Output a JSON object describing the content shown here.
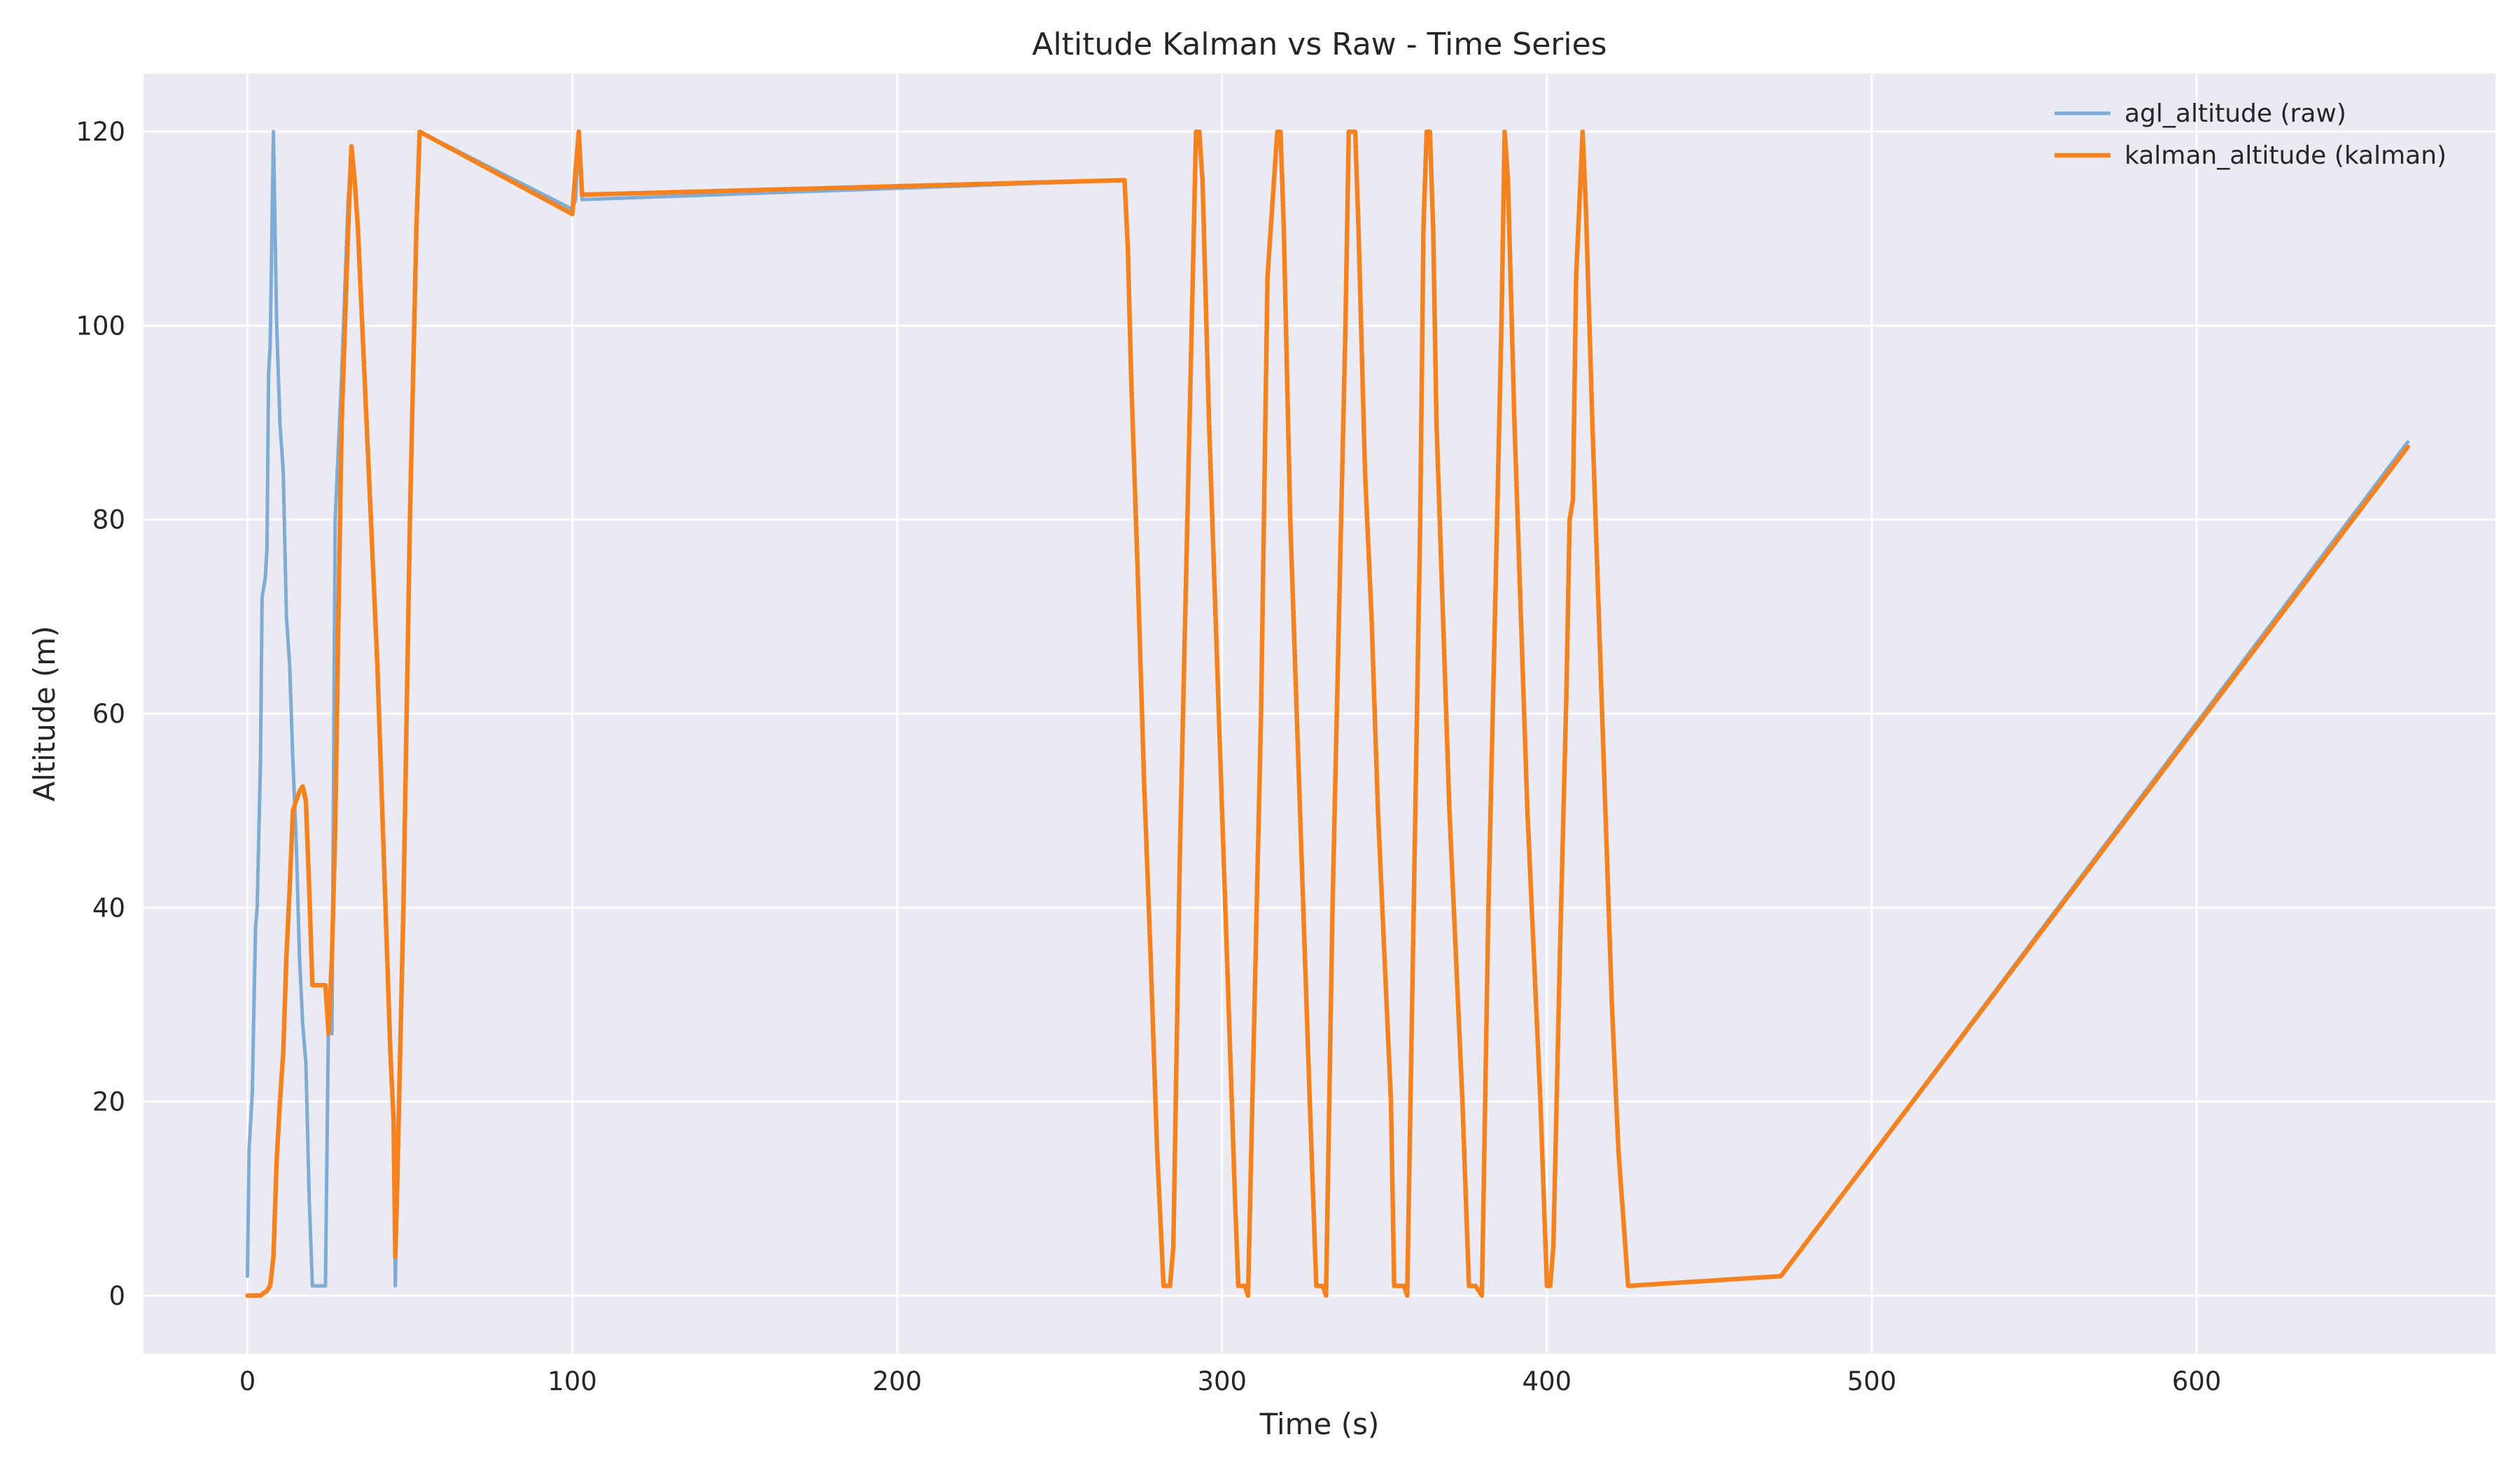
{
  "chart_data": {
    "type": "line",
    "title": "Altitude Kalman vs Raw - Time Series",
    "xlabel": "Time (s)",
    "ylabel": "Altitude (m)",
    "xlim": [
      -32,
      692
    ],
    "ylim": [
      -6,
      126
    ],
    "xticks": [
      0,
      100,
      200,
      300,
      400,
      500,
      600
    ],
    "yticks": [
      0,
      20,
      40,
      60,
      80,
      100,
      120
    ],
    "grid": true,
    "legend_position": "top-right",
    "series": [
      {
        "name": "agl_altitude (raw)",
        "color": "#7fabd4",
        "points": [
          [
            0,
            2
          ],
          [
            0.5,
            15
          ],
          [
            1.5,
            21
          ],
          [
            2,
            30
          ],
          [
            2.5,
            38
          ],
          [
            3,
            40
          ],
          [
            4,
            55
          ],
          [
            4.5,
            72
          ],
          [
            5.5,
            74
          ],
          [
            6,
            77
          ],
          [
            6.5,
            95
          ],
          [
            7,
            98
          ],
          [
            8,
            120
          ],
          [
            9,
            100
          ],
          [
            10,
            90
          ],
          [
            11,
            85
          ],
          [
            12,
            70
          ],
          [
            13,
            65
          ],
          [
            14,
            55
          ],
          [
            15,
            47
          ],
          [
            16,
            35
          ],
          [
            17,
            28
          ],
          [
            18,
            24
          ],
          [
            19,
            10
          ],
          [
            20,
            1
          ],
          [
            22,
            1
          ],
          [
            24,
            1
          ],
          [
            25,
            30
          ],
          [
            26,
            27
          ],
          [
            27,
            80
          ],
          [
            29,
            95
          ],
          [
            31,
            113
          ],
          [
            32,
            118
          ],
          [
            33,
            115
          ],
          [
            34,
            110
          ],
          [
            36,
            95
          ],
          [
            38,
            80
          ],
          [
            40,
            65
          ],
          [
            42,
            45
          ],
          [
            44,
            25
          ],
          [
            45,
            18
          ],
          [
            45.5,
            1
          ],
          [
            46,
            10
          ],
          [
            48,
            40
          ],
          [
            50,
            80
          ],
          [
            51,
            95
          ],
          [
            52,
            110
          ],
          [
            53,
            120
          ],
          [
            100,
            112
          ],
          [
            101,
            113
          ],
          [
            102,
            120
          ],
          [
            103,
            113
          ],
          [
            270,
            115
          ],
          [
            271,
            108
          ],
          [
            272,
            95
          ],
          [
            274,
            75
          ],
          [
            276,
            53
          ],
          [
            278,
            35
          ],
          [
            280,
            15
          ],
          [
            282,
            1
          ],
          [
            284,
            1
          ],
          [
            285,
            5
          ],
          [
            287,
            45
          ],
          [
            289,
            75
          ],
          [
            291,
            105
          ],
          [
            292,
            120
          ],
          [
            293,
            120
          ],
          [
            294,
            115
          ],
          [
            296,
            90
          ],
          [
            298,
            70
          ],
          [
            300,
            50
          ],
          [
            302,
            30
          ],
          [
            304,
            10
          ],
          [
            305,
            1
          ],
          [
            307,
            1
          ],
          [
            308,
            0
          ],
          [
            310,
            30
          ],
          [
            312,
            60
          ],
          [
            314,
            105
          ],
          [
            316,
            115
          ],
          [
            317,
            120
          ],
          [
            318,
            120
          ],
          [
            319,
            110
          ],
          [
            321,
            80
          ],
          [
            323,
            60
          ],
          [
            325,
            40
          ],
          [
            327,
            20
          ],
          [
            329,
            1
          ],
          [
            331,
            1
          ],
          [
            332,
            0
          ],
          [
            334,
            40
          ],
          [
            336,
            70
          ],
          [
            338,
            100
          ],
          [
            339,
            120
          ],
          [
            341,
            120
          ],
          [
            342,
            110
          ],
          [
            344,
            85
          ],
          [
            346,
            70
          ],
          [
            348,
            50
          ],
          [
            350,
            35
          ],
          [
            352,
            20
          ],
          [
            353,
            1
          ],
          [
            356,
            1
          ],
          [
            357,
            0
          ],
          [
            359,
            40
          ],
          [
            361,
            80
          ],
          [
            362,
            110
          ],
          [
            363,
            120
          ],
          [
            364,
            120
          ],
          [
            365,
            110
          ],
          [
            366,
            90
          ],
          [
            368,
            70
          ],
          [
            370,
            50
          ],
          [
            372,
            35
          ],
          [
            374,
            20
          ],
          [
            376,
            1
          ],
          [
            378,
            1
          ],
          [
            380,
            0
          ],
          [
            382,
            40
          ],
          [
            384,
            70
          ],
          [
            386,
            100
          ],
          [
            387,
            120
          ],
          [
            388,
            115
          ],
          [
            390,
            90
          ],
          [
            392,
            70
          ],
          [
            394,
            50
          ],
          [
            396,
            35
          ],
          [
            398,
            20
          ],
          [
            400,
            1
          ],
          [
            401,
            1
          ],
          [
            402,
            5
          ],
          [
            404,
            35
          ],
          [
            406,
            62
          ],
          [
            407,
            80
          ],
          [
            408,
            82
          ],
          [
            409,
            105
          ],
          [
            411,
            120
          ],
          [
            412,
            112
          ],
          [
            414,
            90
          ],
          [
            416,
            70
          ],
          [
            418,
            50
          ],
          [
            420,
            30
          ],
          [
            422,
            15
          ],
          [
            425,
            1
          ],
          [
            472,
            2
          ],
          [
            665,
            88
          ]
        ]
      },
      {
        "name": "kalman_altitude (kalman)",
        "color": "#f5821f",
        "points": [
          [
            0,
            0
          ],
          [
            2,
            0
          ],
          [
            4,
            0
          ],
          [
            6,
            0.5
          ],
          [
            7,
            1
          ],
          [
            8,
            4
          ],
          [
            9,
            14
          ],
          [
            10,
            20
          ],
          [
            11,
            25
          ],
          [
            12,
            35
          ],
          [
            13,
            42
          ],
          [
            14,
            50
          ],
          [
            15,
            51
          ],
          [
            16,
            52
          ],
          [
            17,
            52.5
          ],
          [
            18,
            51
          ],
          [
            19,
            42
          ],
          [
            20,
            32
          ],
          [
            22,
            32
          ],
          [
            24,
            32
          ],
          [
            25,
            27
          ],
          [
            26,
            35
          ],
          [
            27,
            48
          ],
          [
            28,
            70
          ],
          [
            29,
            90
          ],
          [
            31,
            110
          ],
          [
            32,
            118.5
          ],
          [
            33,
            115
          ],
          [
            34,
            110
          ],
          [
            36,
            95
          ],
          [
            38,
            80
          ],
          [
            40,
            65
          ],
          [
            42,
            45
          ],
          [
            44,
            25
          ],
          [
            45,
            18
          ],
          [
            45.5,
            4
          ],
          [
            46,
            10
          ],
          [
            48,
            40
          ],
          [
            50,
            80
          ],
          [
            51,
            95
          ],
          [
            52,
            110
          ],
          [
            53,
            120
          ],
          [
            100,
            111.5
          ],
          [
            101,
            116
          ],
          [
            102,
            120
          ],
          [
            103,
            113.5
          ],
          [
            270,
            115
          ],
          [
            271,
            108
          ],
          [
            272,
            95
          ],
          [
            274,
            75
          ],
          [
            276,
            53
          ],
          [
            278,
            35
          ],
          [
            280,
            15
          ],
          [
            282,
            1
          ],
          [
            284,
            1
          ],
          [
            285,
            5
          ],
          [
            287,
            45
          ],
          [
            289,
            75
          ],
          [
            291,
            105
          ],
          [
            292,
            120
          ],
          [
            293,
            120
          ],
          [
            294,
            115
          ],
          [
            296,
            90
          ],
          [
            298,
            70
          ],
          [
            300,
            50
          ],
          [
            302,
            30
          ],
          [
            304,
            10
          ],
          [
            305,
            1
          ],
          [
            307,
            1
          ],
          [
            308,
            0
          ],
          [
            310,
            30
          ],
          [
            312,
            60
          ],
          [
            314,
            105
          ],
          [
            316,
            115
          ],
          [
            317,
            120
          ],
          [
            318,
            120
          ],
          [
            319,
            110
          ],
          [
            321,
            80
          ],
          [
            323,
            60
          ],
          [
            325,
            40
          ],
          [
            327,
            20
          ],
          [
            329,
            1
          ],
          [
            331,
            1
          ],
          [
            332,
            0
          ],
          [
            334,
            40
          ],
          [
            336,
            70
          ],
          [
            338,
            100
          ],
          [
            339,
            120
          ],
          [
            341,
            120
          ],
          [
            342,
            110
          ],
          [
            344,
            85
          ],
          [
            346,
            70
          ],
          [
            348,
            50
          ],
          [
            350,
            35
          ],
          [
            352,
            20
          ],
          [
            353,
            1
          ],
          [
            356,
            1
          ],
          [
            357,
            0
          ],
          [
            359,
            40
          ],
          [
            361,
            80
          ],
          [
            362,
            110
          ],
          [
            363,
            120
          ],
          [
            364,
            120
          ],
          [
            365,
            110
          ],
          [
            366,
            90
          ],
          [
            368,
            70
          ],
          [
            370,
            50
          ],
          [
            372,
            35
          ],
          [
            374,
            20
          ],
          [
            376,
            1
          ],
          [
            378,
            1
          ],
          [
            380,
            0
          ],
          [
            382,
            40
          ],
          [
            384,
            70
          ],
          [
            386,
            100
          ],
          [
            387,
            120
          ],
          [
            388,
            115
          ],
          [
            390,
            90
          ],
          [
            392,
            70
          ],
          [
            394,
            50
          ],
          [
            396,
            35
          ],
          [
            398,
            20
          ],
          [
            400,
            1
          ],
          [
            401,
            1
          ],
          [
            402,
            5
          ],
          [
            404,
            35
          ],
          [
            406,
            62
          ],
          [
            407,
            80
          ],
          [
            408,
            82
          ],
          [
            409,
            105
          ],
          [
            411,
            120
          ],
          [
            412,
            112
          ],
          [
            414,
            90
          ],
          [
            416,
            70
          ],
          [
            418,
            50
          ],
          [
            420,
            30
          ],
          [
            422,
            15
          ],
          [
            425,
            1
          ],
          [
            472,
            2
          ],
          [
            665,
            87.5
          ]
        ]
      }
    ]
  },
  "colors": {
    "plot_background": "#eaeaf2",
    "grid": "#ffffff",
    "text": "#262626"
  }
}
